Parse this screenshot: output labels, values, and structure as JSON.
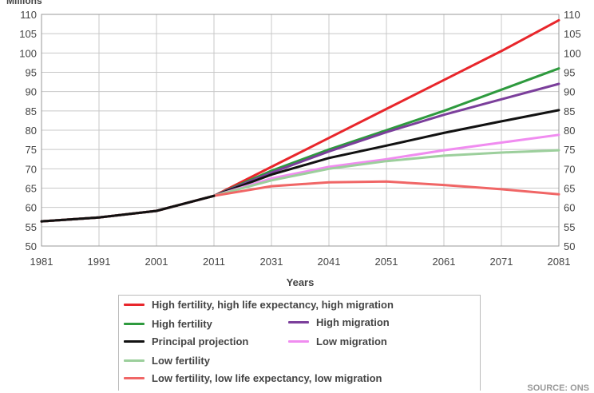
{
  "unit_label": "Millions",
  "source": "SOURCE: ONS",
  "chart_data": {
    "type": "line",
    "xlabel": "Years",
    "x_ticks": [
      "1981",
      "1991",
      "2001",
      "2011",
      "2031",
      "2041",
      "2051",
      "2061",
      "2071",
      "2081"
    ],
    "y_ticks": [
      50,
      55,
      60,
      65,
      70,
      75,
      80,
      85,
      90,
      95,
      100,
      105,
      110
    ],
    "ylim": [
      50,
      110
    ],
    "grid": true,
    "legend_position": "bottom",
    "history": [
      {
        "x": "1981",
        "y": 56.4
      },
      {
        "x": "1991",
        "y": 57.4
      },
      {
        "x": "2001",
        "y": 59.1
      },
      {
        "x": "2011",
        "y": 63.0
      }
    ],
    "series": [
      {
        "name": "High fertility, high life expectancy, high migration",
        "color": "#e8262b",
        "values": [
          {
            "x": "2011",
            "y": 63.0
          },
          {
            "x": "2031",
            "y": 70.5
          },
          {
            "x": "2041",
            "y": 78.0
          },
          {
            "x": "2051",
            "y": 85.5
          },
          {
            "x": "2061",
            "y": 93.0
          },
          {
            "x": "2071",
            "y": 100.5
          },
          {
            "x": "2081",
            "y": 108.5
          }
        ]
      },
      {
        "name": "High fertility",
        "color": "#2e9a3e",
        "values": [
          {
            "x": "2011",
            "y": 63.0
          },
          {
            "x": "2031",
            "y": 69.5
          },
          {
            "x": "2041",
            "y": 75.0
          },
          {
            "x": "2051",
            "y": 80.0
          },
          {
            "x": "2061",
            "y": 85.0
          },
          {
            "x": "2071",
            "y": 90.5
          },
          {
            "x": "2081",
            "y": 96.0
          }
        ]
      },
      {
        "name": "High migration",
        "color": "#7b3f9b",
        "values": [
          {
            "x": "2011",
            "y": 63.0
          },
          {
            "x": "2031",
            "y": 69.0
          },
          {
            "x": "2041",
            "y": 74.5
          },
          {
            "x": "2051",
            "y": 79.5
          },
          {
            "x": "2061",
            "y": 84.0
          },
          {
            "x": "2071",
            "y": 88.0
          },
          {
            "x": "2081",
            "y": 92.0
          }
        ]
      },
      {
        "name": "Principal projection",
        "color": "#111111",
        "values": [
          {
            "x": "2011",
            "y": 63.0
          },
          {
            "x": "2031",
            "y": 68.5
          },
          {
            "x": "2041",
            "y": 72.8
          },
          {
            "x": "2051",
            "y": 76.0
          },
          {
            "x": "2061",
            "y": 79.3
          },
          {
            "x": "2071",
            "y": 82.3
          },
          {
            "x": "2081",
            "y": 85.2
          }
        ]
      },
      {
        "name": "Low migration",
        "color": "#f08cf0",
        "values": [
          {
            "x": "2011",
            "y": 63.0
          },
          {
            "x": "2031",
            "y": 67.5
          },
          {
            "x": "2041",
            "y": 70.5
          },
          {
            "x": "2051",
            "y": 72.5
          },
          {
            "x": "2061",
            "y": 74.8
          },
          {
            "x": "2071",
            "y": 76.8
          },
          {
            "x": "2081",
            "y": 78.8
          }
        ]
      },
      {
        "name": "Low fertility",
        "color": "#9ccf9c",
        "values": [
          {
            "x": "2011",
            "y": 63.0
          },
          {
            "x": "2031",
            "y": 67.0
          },
          {
            "x": "2041",
            "y": 70.0
          },
          {
            "x": "2051",
            "y": 72.0
          },
          {
            "x": "2061",
            "y": 73.4
          },
          {
            "x": "2071",
            "y": 74.2
          },
          {
            "x": "2081",
            "y": 74.8
          }
        ]
      },
      {
        "name": "Low fertility, low life expectancy, low migration",
        "color": "#f06666",
        "values": [
          {
            "x": "2011",
            "y": 63.0
          },
          {
            "x": "2031",
            "y": 65.5
          },
          {
            "x": "2041",
            "y": 66.5
          },
          {
            "x": "2051",
            "y": 66.7
          },
          {
            "x": "2061",
            "y": 65.8
          },
          {
            "x": "2071",
            "y": 64.7
          },
          {
            "x": "2081",
            "y": 63.4
          }
        ]
      }
    ]
  },
  "legend": {
    "items": [
      {
        "label": "High fertility, high life expectancy, high migration",
        "color": "#e8262b"
      },
      {
        "label": "High fertility",
        "color": "#2e9a3e"
      },
      {
        "label": "High migration",
        "color": "#7b3f9b"
      },
      {
        "label": "Principal projection",
        "color": "#111111"
      },
      {
        "label": "Low migration",
        "color": "#f08cf0"
      },
      {
        "label": "Low fertility",
        "color": "#9ccf9c"
      },
      {
        "label": "Low fertility, low life expectancy, low migration",
        "color": "#f06666"
      }
    ]
  }
}
